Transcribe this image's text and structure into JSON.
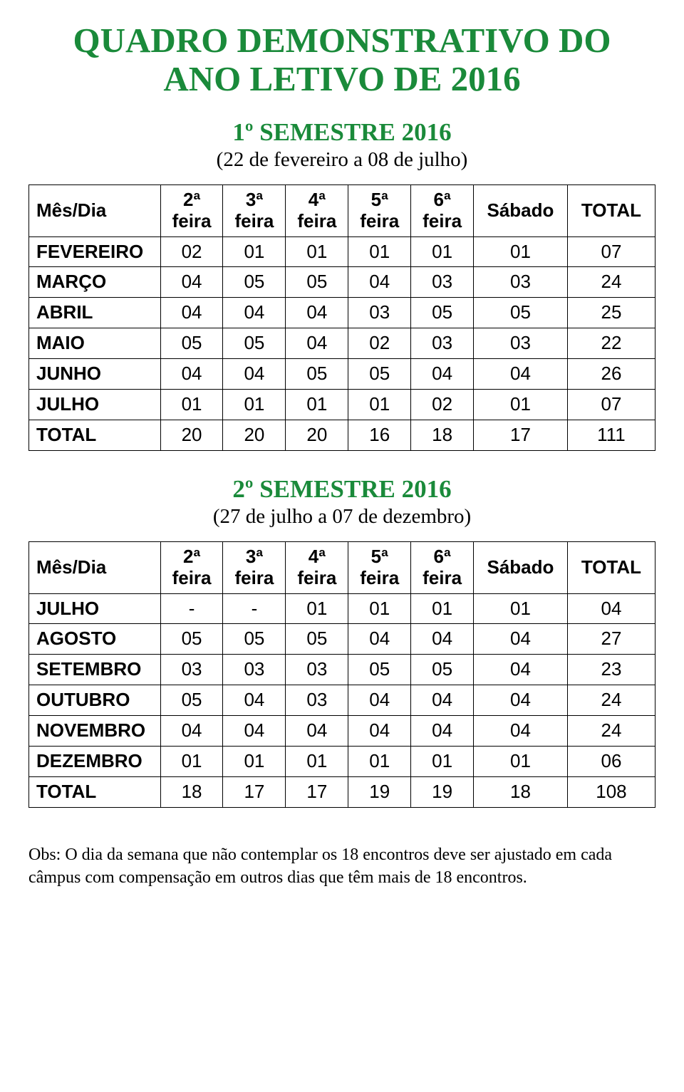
{
  "colors": {
    "title_green": "#1a8a3a",
    "text": "#000000",
    "border": "#000000",
    "background": "#ffffff"
  },
  "typography": {
    "title_font": "Times New Roman",
    "title_size_pt": 37,
    "semester_title_size_pt": 26,
    "range_size_pt": 22,
    "table_font": "Arial",
    "table_size_pt": 20,
    "note_size_pt": 18
  },
  "main_title_line1": "QUADRO DEMONSTRATIVO DO",
  "main_title_line2": "ANO LETIVO DE 2016",
  "semester1": {
    "title": "1º SEMESTRE 2016",
    "range": "(22 de fevereiro a 08 de julho)",
    "type": "table",
    "col0": "Mês/Dia",
    "headers": [
      {
        "top": "2ª",
        "bot": "feira"
      },
      {
        "top": "3ª",
        "bot": "feira"
      },
      {
        "top": "4ª",
        "bot": "feira"
      },
      {
        "top": "5ª",
        "bot": "feira"
      },
      {
        "top": "6ª",
        "bot": "feira"
      }
    ],
    "sabado": "Sábado",
    "total": "TOTAL",
    "rows": [
      {
        "label": "FEVEREIRO",
        "v": [
          "02",
          "01",
          "01",
          "01",
          "01",
          "01",
          "07"
        ]
      },
      {
        "label": "MARÇO",
        "v": [
          "04",
          "05",
          "05",
          "04",
          "03",
          "03",
          "24"
        ]
      },
      {
        "label": "ABRIL",
        "v": [
          "04",
          "04",
          "04",
          "03",
          "05",
          "05",
          "25"
        ]
      },
      {
        "label": "MAIO",
        "v": [
          "05",
          "05",
          "04",
          "02",
          "03",
          "03",
          "22"
        ]
      },
      {
        "label": "JUNHO",
        "v": [
          "04",
          "04",
          "05",
          "05",
          "04",
          "04",
          "26"
        ]
      },
      {
        "label": "JULHO",
        "v": [
          "01",
          "01",
          "01",
          "01",
          "02",
          "01",
          "07"
        ]
      },
      {
        "label": "TOTAL",
        "v": [
          "20",
          "20",
          "20",
          "16",
          "18",
          "17",
          "111"
        ]
      }
    ]
  },
  "semester2": {
    "title": "2º SEMESTRE 2016",
    "range": "(27 de julho a 07 de dezembro)",
    "type": "table",
    "col0": "Mês/Dia",
    "headers": [
      {
        "top": "2ª",
        "bot": "feira"
      },
      {
        "top": "3ª",
        "bot": "feira"
      },
      {
        "top": "4ª",
        "bot": "feira"
      },
      {
        "top": "5ª",
        "bot": "feira"
      },
      {
        "top": "6ª",
        "bot": "feira"
      }
    ],
    "sabado": "Sábado",
    "total": "TOTAL",
    "rows": [
      {
        "label": "JULHO",
        "v": [
          "-",
          "-",
          "01",
          "01",
          "01",
          "01",
          "04"
        ]
      },
      {
        "label": "AGOSTO",
        "v": [
          "05",
          "05",
          "05",
          "04",
          "04",
          "04",
          "27"
        ]
      },
      {
        "label": "SETEMBRO",
        "v": [
          "03",
          "03",
          "03",
          "05",
          "05",
          "04",
          "23"
        ]
      },
      {
        "label": "OUTUBRO",
        "v": [
          "05",
          "04",
          "03",
          "04",
          "04",
          "04",
          "24"
        ]
      },
      {
        "label": "NOVEMBRO",
        "v": [
          "04",
          "04",
          "04",
          "04",
          "04",
          "04",
          "24"
        ]
      },
      {
        "label": "DEZEMBRO",
        "v": [
          "01",
          "01",
          "01",
          "01",
          "01",
          "01",
          "06"
        ]
      },
      {
        "label": "TOTAL",
        "v": [
          "18",
          "17",
          "17",
          "19",
          "19",
          "18",
          "108"
        ]
      }
    ]
  },
  "note": "Obs: O dia da semana que não contemplar os 18 encontros deve ser ajustado em cada câmpus com compensação em outros dias que têm mais de 18 encontros."
}
